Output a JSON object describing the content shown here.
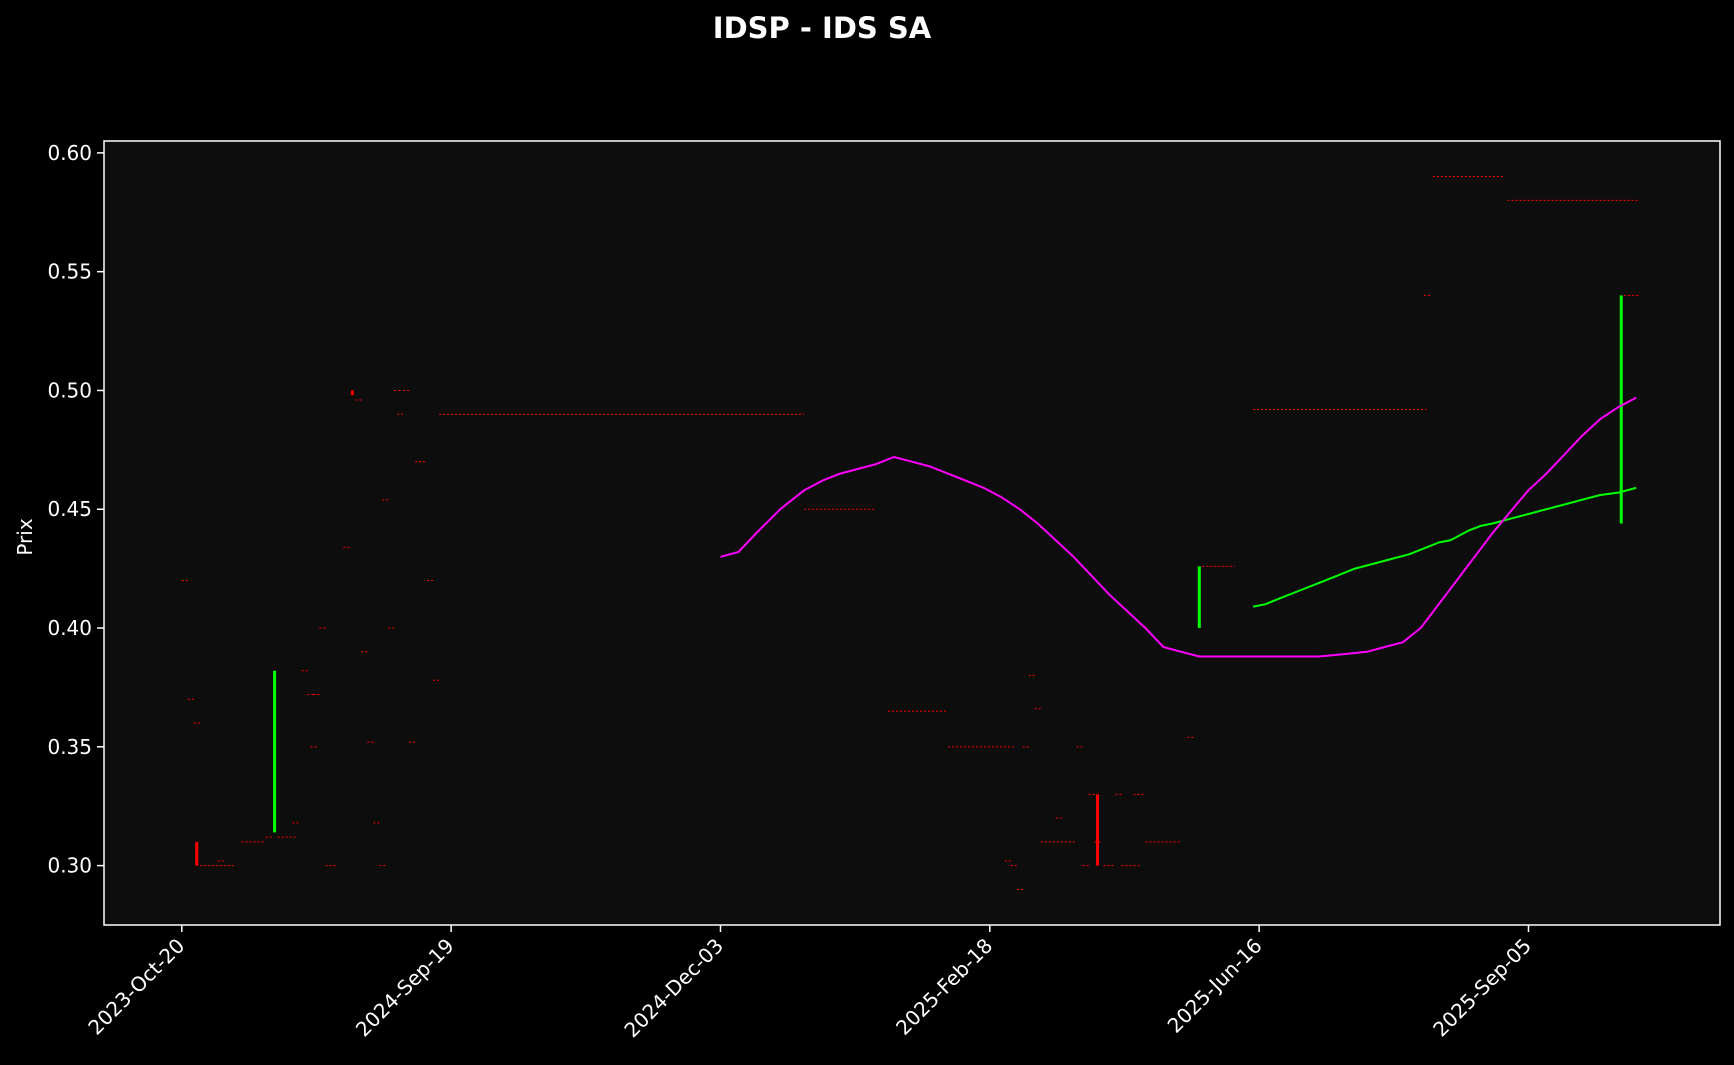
{
  "chart_data": {
    "type": "line",
    "title": "IDSP - IDS SA",
    "xlabel": "",
    "ylabel": "Prix",
    "ylim": [
      0.275,
      0.605
    ],
    "grid": false,
    "x_categories": [
      "2023-Oct-20",
      "2024-Sep-19",
      "2024-Dec-03",
      "2025-Feb-18",
      "2025-Jun-16",
      "2025-Sep-05"
    ],
    "x_ticks": [
      {
        "label": "2023-Oct-20",
        "pos": 0
      },
      {
        "label": "2024-Sep-19",
        "pos": 45
      },
      {
        "label": "2024-Dec-03",
        "pos": 90
      },
      {
        "label": "2025-Feb-18",
        "pos": 135
      },
      {
        "label": "2025-Jun-16",
        "pos": 180
      },
      {
        "label": "2025-Sep-05",
        "pos": 225
      }
    ],
    "x_range": [
      -13,
      257
    ],
    "y_ticks": [
      0.3,
      0.35,
      0.4,
      0.45,
      0.5,
      0.55,
      0.6
    ],
    "colors": {
      "background": "#000000",
      "plot_bg": "#0d0d0d",
      "axes": "#ffffff",
      "up": "#00ff00",
      "down": "#ff0000",
      "ma_short": "#00ff00",
      "ma_long": "#ff00ff"
    },
    "candles": [
      {
        "pos": 2.5,
        "open": 0.31,
        "close": 0.3,
        "high": 0.31,
        "low": 0.3
      },
      {
        "pos": 15.5,
        "open": 0.314,
        "close": 0.382,
        "high": 0.382,
        "low": 0.314
      },
      {
        "pos": 28.5,
        "open": 0.5,
        "close": 0.498,
        "high": 0.5,
        "low": 0.498
      },
      {
        "pos": 153,
        "open": 0.33,
        "close": 0.3,
        "high": 0.33,
        "low": 0.3
      },
      {
        "pos": 170,
        "open": 0.4,
        "close": 0.426,
        "high": 0.426,
        "low": 0.4
      },
      {
        "pos": 240.5,
        "open": 0.444,
        "close": 0.54,
        "high": 0.54,
        "low": 0.444
      }
    ],
    "flat_segments": [
      {
        "x0": 0,
        "x1": 1,
        "y": 0.42
      },
      {
        "x0": 1,
        "x1": 2,
        "y": 0.37
      },
      {
        "x0": 2,
        "x1": 3,
        "y": 0.36
      },
      {
        "x0": 3,
        "x1": 9,
        "y": 0.3
      },
      {
        "x0": 6,
        "x1": 7,
        "y": 0.302
      },
      {
        "x0": 10,
        "x1": 14,
        "y": 0.31
      },
      {
        "x0": 14,
        "x1": 15,
        "y": 0.312
      },
      {
        "x0": 16,
        "x1": 19,
        "y": 0.312
      },
      {
        "x0": 18.5,
        "x1": 19.5,
        "y": 0.318
      },
      {
        "x0": 20,
        "x1": 21,
        "y": 0.382
      },
      {
        "x0": 21,
        "x1": 22,
        "y": 0.372
      },
      {
        "x0": 22,
        "x1": 23,
        "y": 0.372
      },
      {
        "x0": 21.5,
        "x1": 22.5,
        "y": 0.35
      },
      {
        "x0": 23,
        "x1": 24,
        "y": 0.4
      },
      {
        "x0": 24,
        "x1": 26,
        "y": 0.3
      },
      {
        "x0": 27,
        "x1": 28,
        "y": 0.434
      },
      {
        "x0": 29,
        "x1": 30,
        "y": 0.496
      },
      {
        "x0": 30,
        "x1": 31,
        "y": 0.39
      },
      {
        "x0": 31,
        "x1": 32,
        "y": 0.352
      },
      {
        "x0": 32,
        "x1": 33,
        "y": 0.318
      },
      {
        "x0": 33,
        "x1": 34,
        "y": 0.3
      },
      {
        "x0": 33.5,
        "x1": 34.5,
        "y": 0.454
      },
      {
        "x0": 34.5,
        "x1": 35.5,
        "y": 0.4
      },
      {
        "x0": 35.5,
        "x1": 36.5,
        "y": 0.5
      },
      {
        "x0": 36,
        "x1": 37,
        "y": 0.49
      },
      {
        "x0": 37,
        "x1": 38,
        "y": 0.5
      },
      {
        "x0": 38,
        "x1": 39,
        "y": 0.352
      },
      {
        "x0": 39,
        "x1": 41,
        "y": 0.47
      },
      {
        "x0": 41,
        "x1": 42,
        "y": 0.42
      },
      {
        "x0": 42,
        "x1": 43,
        "y": 0.378
      },
      {
        "x0": 43,
        "x1": 104,
        "y": 0.49
      },
      {
        "x0": 104,
        "x1": 116,
        "y": 0.45
      },
      {
        "x0": 118,
        "x1": 128,
        "y": 0.365
      },
      {
        "x0": 128,
        "x1": 139,
        "y": 0.35
      },
      {
        "x0": 137.5,
        "x1": 138.5,
        "y": 0.302
      },
      {
        "x0": 138.5,
        "x1": 139.5,
        "y": 0.3
      },
      {
        "x0": 139.5,
        "x1": 140.5,
        "y": 0.29
      },
      {
        "x0": 140.5,
        "x1": 141.5,
        "y": 0.35
      },
      {
        "x0": 141.5,
        "x1": 142.5,
        "y": 0.38
      },
      {
        "x0": 142.5,
        "x1": 143.5,
        "y": 0.366
      },
      {
        "x0": 143.5,
        "x1": 149.5,
        "y": 0.31
      },
      {
        "x0": 146,
        "x1": 147,
        "y": 0.32
      },
      {
        "x0": 149.5,
        "x1": 150.5,
        "y": 0.35
      },
      {
        "x0": 150.5,
        "x1": 151.5,
        "y": 0.3
      },
      {
        "x0": 151.5,
        "x1": 152.5,
        "y": 0.33
      },
      {
        "x0": 152.5,
        "x1": 153.5,
        "y": 0.31
      },
      {
        "x0": 154,
        "x1": 156,
        "y": 0.3
      },
      {
        "x0": 156,
        "x1": 157,
        "y": 0.33
      },
      {
        "x0": 157,
        "x1": 160,
        "y": 0.3
      },
      {
        "x0": 159,
        "x1": 161,
        "y": 0.33
      },
      {
        "x0": 161,
        "x1": 167,
        "y": 0.31
      },
      {
        "x0": 168,
        "x1": 169,
        "y": 0.354
      },
      {
        "x0": 170.5,
        "x1": 176,
        "y": 0.426
      },
      {
        "x0": 179,
        "x1": 208,
        "y": 0.492
      },
      {
        "x0": 207.5,
        "x1": 208.5,
        "y": 0.54
      },
      {
        "x0": 209,
        "x1": 221,
        "y": 0.59
      },
      {
        "x0": 221.5,
        "x1": 243.5,
        "y": 0.58
      },
      {
        "x0": 241,
        "x1": 243.5,
        "y": 0.54
      }
    ],
    "series": [
      {
        "role": "ma_short",
        "x": [
          179,
          181,
          184,
          187,
          190,
          193,
          196,
          199,
          202,
          205,
          208,
          210,
          212,
          215,
          217,
          219,
          222,
          225,
          228,
          231,
          234,
          237,
          240,
          243
        ],
        "y": [
          0.409,
          0.41,
          0.413,
          0.416,
          0.419,
          0.422,
          0.425,
          0.427,
          0.429,
          0.431,
          0.434,
          0.436,
          0.437,
          0.441,
          0.443,
          0.444,
          0.446,
          0.448,
          0.45,
          0.452,
          0.454,
          0.456,
          0.457,
          0.459
        ]
      },
      {
        "role": "ma_long",
        "x": [
          90,
          93,
          96,
          100,
          104,
          107,
          110,
          113,
          116,
          119,
          122,
          125,
          128,
          131,
          134,
          137,
          140,
          143,
          146,
          149,
          152,
          155,
          158,
          161,
          164,
          167,
          170,
          174,
          180,
          185,
          190,
          194,
          198,
          201,
          204,
          207,
          210,
          213,
          216,
          219,
          222,
          225,
          228,
          231,
          234,
          237,
          240,
          243
        ],
        "y": [
          0.43,
          0.432,
          0.44,
          0.45,
          0.458,
          0.462,
          0.465,
          0.467,
          0.469,
          0.472,
          0.47,
          0.468,
          0.465,
          0.462,
          0.459,
          0.455,
          0.45,
          0.444,
          0.437,
          0.43,
          0.422,
          0.414,
          0.407,
          0.4,
          0.392,
          0.39,
          0.388,
          0.388,
          0.388,
          0.388,
          0.388,
          0.389,
          0.39,
          0.392,
          0.394,
          0.4,
          0.41,
          0.42,
          0.43,
          0.44,
          0.449,
          0.458,
          0.465,
          0.473,
          0.481,
          0.488,
          0.493,
          0.497
        ]
      }
    ]
  }
}
